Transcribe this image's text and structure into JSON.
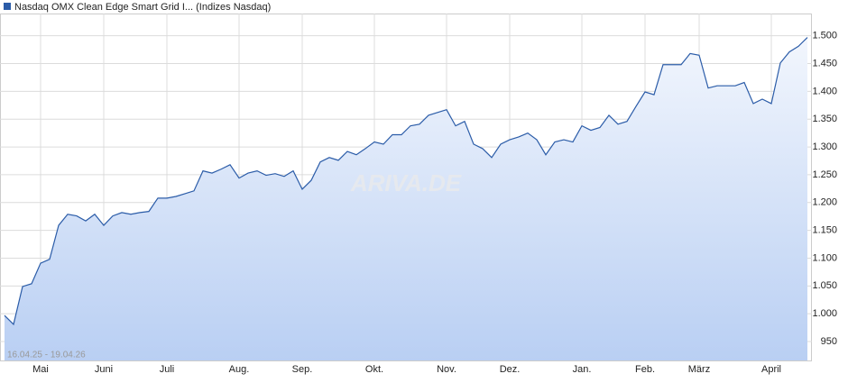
{
  "chart_data": {
    "type": "line",
    "title": "Nasdaq OMX Clean Edge Smart Grid I... (Indizes Nasdaq)",
    "date_range": "16.04.25 - 19.04.26",
    "watermark": "ARIVA.DE",
    "categories": [
      null,
      null,
      null,
      null,
      "Mai",
      null,
      null,
      null,
      null,
      null,
      null,
      "Juni",
      null,
      null,
      null,
      null,
      null,
      null,
      "Juli",
      null,
      null,
      null,
      null,
      null,
      null,
      null,
      "Aug.",
      null,
      null,
      null,
      null,
      null,
      null,
      "Sep.",
      null,
      null,
      null,
      null,
      null,
      null,
      null,
      "Okt.",
      null,
      null,
      null,
      null,
      null,
      null,
      null,
      "Nov.",
      null,
      null,
      null,
      null,
      null,
      null,
      "Dez.",
      null,
      null,
      null,
      null,
      null,
      null,
      null,
      "Jan.",
      null,
      null,
      null,
      null,
      null,
      null,
      "Feb.",
      null,
      null,
      null,
      null,
      null,
      "März",
      null,
      null,
      null,
      null,
      null,
      null,
      null,
      "April",
      null,
      null,
      null,
      null
    ],
    "series": [
      {
        "color": "#2b5ca8",
        "values": [
          997,
          981,
          1049,
          1054,
          1091,
          1098,
          1159,
          1179,
          1176,
          1167,
          1179,
          1159,
          1176,
          1182,
          1179,
          1182,
          1184,
          1208,
          1208,
          1211,
          1216,
          1221,
          1257,
          1253,
          1260,
          1268,
          1244,
          1253,
          1257,
          1249,
          1252,
          1247,
          1257,
          1224,
          1240,
          1273,
          1281,
          1276,
          1292,
          1286,
          1297,
          1309,
          1305,
          1322,
          1322,
          1338,
          1341,
          1357,
          1362,
          1367,
          1338,
          1346,
          1305,
          1297,
          1281,
          1305,
          1313,
          1318,
          1325,
          1313,
          1286,
          1309,
          1313,
          1309,
          1338,
          1330,
          1335,
          1357,
          1341,
          1346,
          1373,
          1399,
          1394,
          1448,
          1448,
          1448,
          1468,
          1465,
          1406,
          1410,
          1410,
          1410,
          1416,
          1378,
          1386,
          1378,
          1451,
          1471,
          1481,
          1497
        ]
      }
    ],
    "ylim": [
      916,
      1540
    ],
    "yticks": [
      950,
      {
        "value": 1000,
        "label": "1.000"
      },
      {
        "value": 1050,
        "label": "1.050"
      },
      {
        "value": 1100,
        "label": "1.100"
      },
      {
        "value": 1150,
        "label": "1.150"
      },
      {
        "value": 1200,
        "label": "1.200"
      },
      {
        "value": 1250,
        "label": "1.250"
      },
      {
        "value": 1300,
        "label": "1.300"
      },
      {
        "value": 1350,
        "label": "1.350"
      },
      {
        "value": 1400,
        "label": "1.400"
      },
      {
        "value": 1450,
        "label": "1.450"
      },
      {
        "value": 1500,
        "label": "1.500"
      }
    ],
    "grid": true
  }
}
